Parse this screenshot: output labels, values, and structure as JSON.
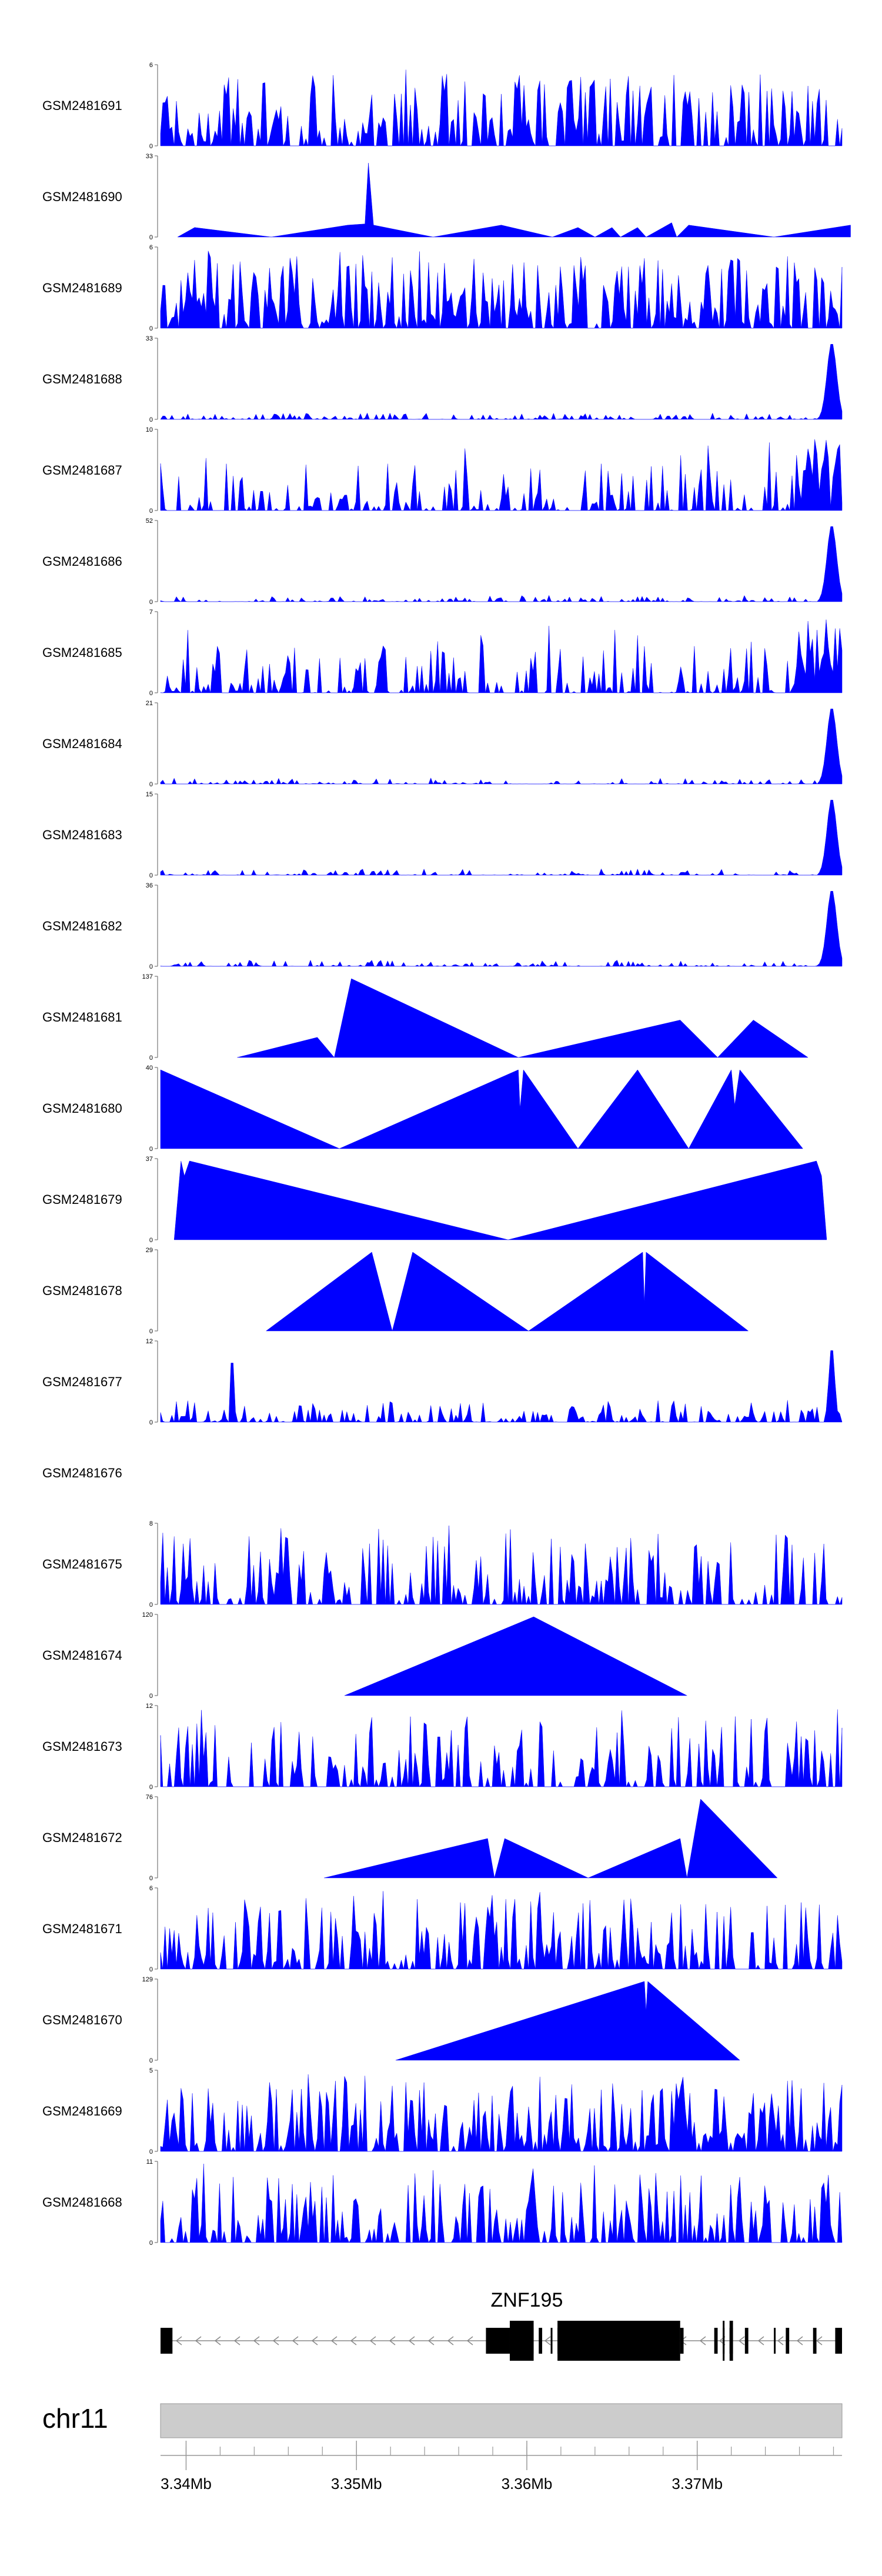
{
  "chart_data": {
    "type": "area",
    "x_unit": "Mb",
    "x_range": [
      3.3385,
      3.3785
    ],
    "color_hex": "#0000FF",
    "tracks": [
      {
        "name": "GSM2481691",
        "ymax": "6",
        "ymin": "0",
        "shape": "spiky",
        "seed": 11,
        "density": 0.65
      },
      {
        "name": "GSM2481690",
        "ymax": "33",
        "ymin": "0",
        "shape": "peaks",
        "points": [
          [
            3.3395,
            0
          ],
          [
            3.3405,
            4
          ],
          [
            3.345,
            0
          ],
          [
            3.3495,
            5
          ],
          [
            3.3505,
            5.5
          ],
          [
            3.3507,
            31
          ],
          [
            3.351,
            5
          ],
          [
            3.3545,
            0
          ],
          [
            3.3585,
            5
          ],
          [
            3.3615,
            0
          ],
          [
            3.363,
            4
          ],
          [
            3.364,
            0
          ],
          [
            3.365,
            4
          ],
          [
            3.3655,
            0
          ],
          [
            3.3665,
            4
          ],
          [
            3.367,
            0
          ],
          [
            3.368,
            4
          ],
          [
            3.3685,
            6
          ],
          [
            3.3688,
            0
          ],
          [
            3.3695,
            5
          ],
          [
            3.3745,
            0
          ],
          [
            3.379,
            5
          ]
        ]
      },
      {
        "name": "GSM2481689",
        "ymax": "6",
        "ymin": "0",
        "shape": "spiky",
        "seed": 23,
        "density": 0.8
      },
      {
        "name": "GSM2481688",
        "ymax": "33",
        "ymin": "0",
        "shape": "lowend",
        "seed": 31,
        "peak": 33
      },
      {
        "name": "GSM2481687",
        "ymax": "10",
        "ymin": "0",
        "shape": "mixed",
        "seed": 41
      },
      {
        "name": "GSM2481686",
        "ymax": "52",
        "ymin": "0",
        "shape": "lowend",
        "seed": 47,
        "peak": 52
      },
      {
        "name": "GSM2481685",
        "ymax": "7",
        "ymin": "0",
        "shape": "mixed",
        "seed": 53
      },
      {
        "name": "GSM2481684",
        "ymax": "21",
        "ymin": "0",
        "shape": "lowend",
        "seed": 59,
        "peak": 21
      },
      {
        "name": "GSM2481683",
        "ymax": "15",
        "ymin": "0",
        "shape": "lowend",
        "seed": 61,
        "peak": 15
      },
      {
        "name": "GSM2481682",
        "ymax": "36",
        "ymin": "0",
        "shape": "lowend",
        "seed": 67,
        "peak": 36
      },
      {
        "name": "GSM2481681",
        "ymax": "137",
        "ymin": "0",
        "shape": "peaks",
        "points": [
          [
            3.343,
            0
          ],
          [
            3.3477,
            35
          ],
          [
            3.3479,
            28
          ],
          [
            3.3487,
            0
          ],
          [
            3.3497,
            137
          ],
          [
            3.3595,
            0
          ],
          [
            3.369,
            65
          ],
          [
            3.3712,
            0
          ],
          [
            3.3733,
            65
          ],
          [
            3.3765,
            0
          ]
        ]
      },
      {
        "name": "GSM2481680",
        "ymax": "40",
        "ymin": "0",
        "shape": "peaks",
        "points": [
          [
            3.3385,
            40
          ],
          [
            3.349,
            0
          ],
          [
            3.3595,
            40
          ],
          [
            3.3596,
            20
          ],
          [
            3.3598,
            40
          ],
          [
            3.363,
            0
          ],
          [
            3.3665,
            40
          ],
          [
            3.3695,
            0
          ],
          [
            3.372,
            40
          ],
          [
            3.3722,
            22
          ],
          [
            3.3725,
            40
          ],
          [
            3.3762,
            0
          ]
        ]
      },
      {
        "name": "GSM2481679",
        "ymax": "37",
        "ymin": "0",
        "shape": "peaks",
        "points": [
          [
            3.3393,
            0
          ],
          [
            3.3397,
            37
          ],
          [
            3.3399,
            30
          ],
          [
            3.3402,
            37
          ],
          [
            3.3589,
            0
          ],
          [
            3.377,
            37
          ],
          [
            3.3773,
            30
          ],
          [
            3.3776,
            0
          ]
        ]
      },
      {
        "name": "GSM2481678",
        "ymax": "29",
        "ymin": "0",
        "shape": "peaks",
        "points": [
          [
            3.3447,
            0
          ],
          [
            3.3509,
            29
          ],
          [
            3.3521,
            0
          ],
          [
            3.3533,
            29
          ],
          [
            3.3601,
            0
          ],
          [
            3.3668,
            29
          ],
          [
            3.3669,
            10
          ],
          [
            3.367,
            29
          ],
          [
            3.373,
            0
          ]
        ]
      },
      {
        "name": "GSM2481677",
        "ymax": "12",
        "ymin": "0",
        "shape": "lowend2",
        "seed": 71
      },
      {
        "name": "GSM2481676",
        "ymax": "",
        "ymin": "",
        "shape": "empty"
      },
      {
        "name": "GSM2481675",
        "ymax": "8",
        "ymin": "0",
        "shape": "spiky",
        "seed": 79,
        "density": 0.55
      },
      {
        "name": "GSM2481674",
        "ymax": "120",
        "ymin": "0",
        "shape": "peaks",
        "points": [
          [
            3.3493,
            0
          ],
          [
            3.3604,
            120
          ],
          [
            3.3694,
            0
          ]
        ]
      },
      {
        "name": "GSM2481673",
        "ymax": "12",
        "ymin": "0",
        "shape": "spiky",
        "seed": 83,
        "density": 0.5
      },
      {
        "name": "GSM2481672",
        "ymax": "76",
        "ymin": "0",
        "shape": "peaks",
        "points": [
          [
            3.3481,
            0
          ],
          [
            3.3577,
            38
          ],
          [
            3.3581,
            0
          ],
          [
            3.3587,
            38
          ],
          [
            3.3636,
            0
          ],
          [
            3.369,
            38
          ],
          [
            3.3694,
            0
          ],
          [
            3.3702,
            76
          ],
          [
            3.3747,
            0
          ]
        ]
      },
      {
        "name": "GSM2481671",
        "ymax": "6",
        "ymin": "0",
        "shape": "spiky",
        "seed": 89,
        "density": 0.6
      },
      {
        "name": "GSM2481670",
        "ymax": "129",
        "ymin": "0",
        "shape": "peaks",
        "points": [
          [
            3.3523,
            0
          ],
          [
            3.3669,
            129
          ],
          [
            3.367,
            80
          ],
          [
            3.3671,
            129
          ],
          [
            3.3725,
            0
          ]
        ]
      },
      {
        "name": "GSM2481669",
        "ymax": "5",
        "ymin": "0",
        "shape": "spiky",
        "seed": 97,
        "density": 0.75
      },
      {
        "name": "GSM2481668",
        "ymax": "11",
        "ymin": "0",
        "shape": "spiky",
        "seed": 101,
        "density": 0.55
      }
    ],
    "gene": {
      "name": "ZNF195",
      "strand": "-",
      "line_range": [
        3.3385,
        3.3785
      ],
      "exons": [
        [
          3.3385,
          3.3392
        ],
        [
          3.3576,
          3.359
        ],
        [
          3.359,
          3.3604
        ],
        [
          3.3607,
          3.3609
        ],
        [
          3.3614,
          3.3615
        ],
        [
          3.3618,
          3.369
        ],
        [
          3.367,
          3.3673
        ],
        [
          3.369,
          3.3692
        ],
        [
          3.371,
          3.3712
        ],
        [
          3.3715,
          3.3716
        ],
        [
          3.3719,
          3.3721
        ],
        [
          3.3728,
          3.373
        ],
        [
          3.3745,
          3.3746
        ],
        [
          3.3752,
          3.3754
        ],
        [
          3.3768,
          3.377
        ],
        [
          3.3781,
          3.3785
        ]
      ],
      "tall_exons": [
        [
          3.359,
          3.3604
        ],
        [
          3.3618,
          3.369
        ],
        [
          3.367,
          3.3673
        ],
        [
          3.3715,
          3.3716
        ],
        [
          3.3719,
          3.3721
        ]
      ]
    },
    "chromosome": {
      "name": "chr11",
      "ticks": [
        {
          "value": 3.34,
          "label": "3.34Mb"
        },
        {
          "value": 3.35,
          "label": "3.35Mb"
        },
        {
          "value": 3.36,
          "label": "3.36Mb"
        },
        {
          "value": 3.37,
          "label": "3.37Mb"
        }
      ],
      "minor_step": 0.002
    }
  }
}
